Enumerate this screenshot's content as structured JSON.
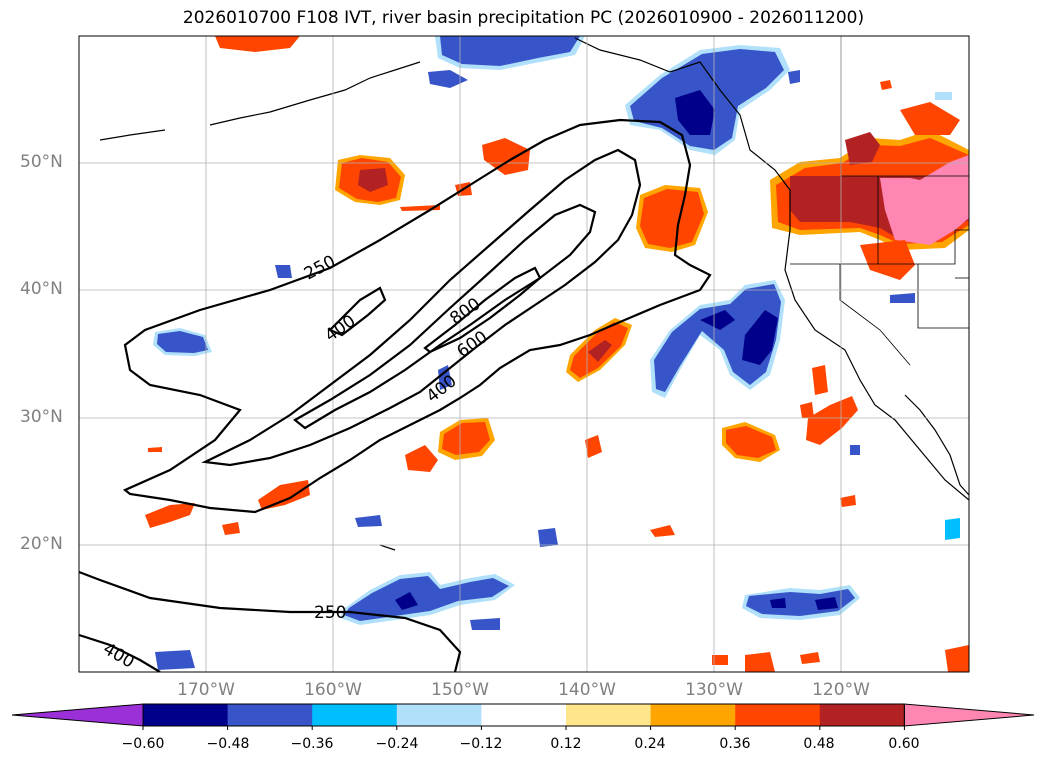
{
  "title": "2026010700 F108 IVT, river basin precipitation PC (2026010900 - 2026011200)",
  "lat_labels": [
    "50°N",
    "40°N",
    "30°N",
    "20°N"
  ],
  "lon_labels": [
    "170°W",
    "160°W",
    "150°W",
    "140°W",
    "130°W",
    "120°W"
  ],
  "contour_labels": [
    "250",
    "400",
    "800",
    "600",
    "400",
    "250",
    "400"
  ],
  "colorbar": {
    "ticks": [
      "−0.60",
      "−0.48",
      "−0.36",
      "−0.24",
      "−0.12",
      "0.12",
      "0.24",
      "0.36",
      "0.48",
      "0.60"
    ],
    "colors": [
      "#9b30d9",
      "#00008b",
      "#3755c8",
      "#00bfff",
      "#b0e0fa",
      "#ffffff",
      "#ffe68a",
      "#ffa500",
      "#ff4500",
      "#b22222",
      "#ff85b3"
    ]
  }
}
